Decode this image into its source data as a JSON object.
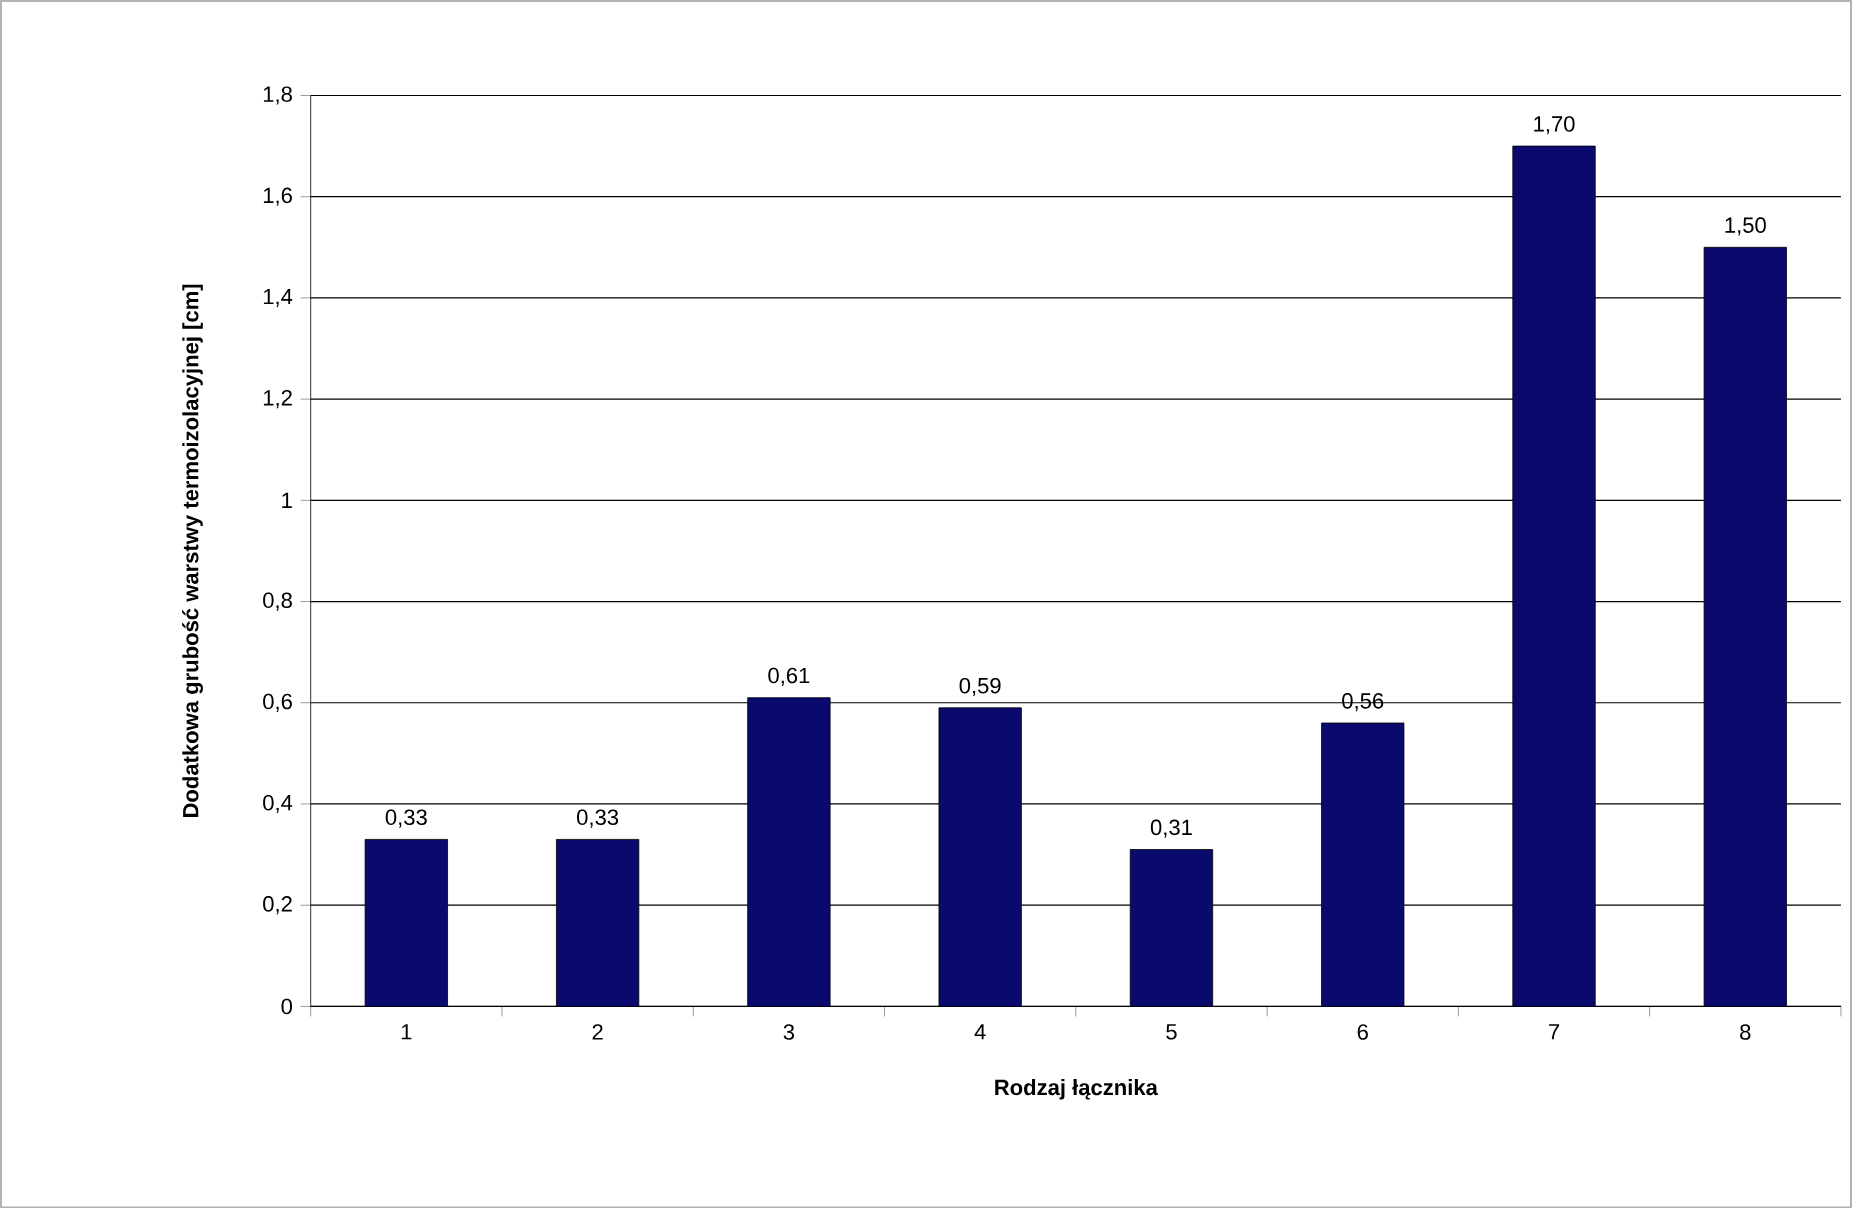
{
  "chart_data": {
    "type": "bar",
    "xlabel": "Rodzaj łącznika",
    "ylabel": "Dodatkowa grubość warstwy termoizolacyjnej [cm]",
    "categories": [
      "1",
      "2",
      "3",
      "4",
      "5",
      "6",
      "7",
      "8"
    ],
    "values": [
      0.33,
      0.33,
      0.61,
      0.59,
      0.31,
      0.56,
      1.7,
      1.5
    ],
    "value_labels": [
      "0,33",
      "0,33",
      "0,61",
      "0,59",
      "0,31",
      "0,56",
      "1,70",
      "1,50"
    ],
    "color": "#0a0a6e",
    "ylim": [
      0,
      1.8
    ],
    "yticks": [
      0,
      {
        "value": 0.2,
        "label": "0,2"
      },
      {
        "value": 0.4,
        "label": "0,4"
      },
      {
        "value": 0.6,
        "label": "0,6"
      },
      {
        "value": 0.8,
        "label": "0,8"
      },
      1,
      {
        "value": 1.2,
        "label": "1,2"
      },
      {
        "value": 1.4,
        "label": "1,4"
      },
      {
        "value": 1.6,
        "label": "1,6"
      },
      {
        "value": 1.8,
        "label": "1,8"
      }
    ],
    "grid": "y"
  }
}
